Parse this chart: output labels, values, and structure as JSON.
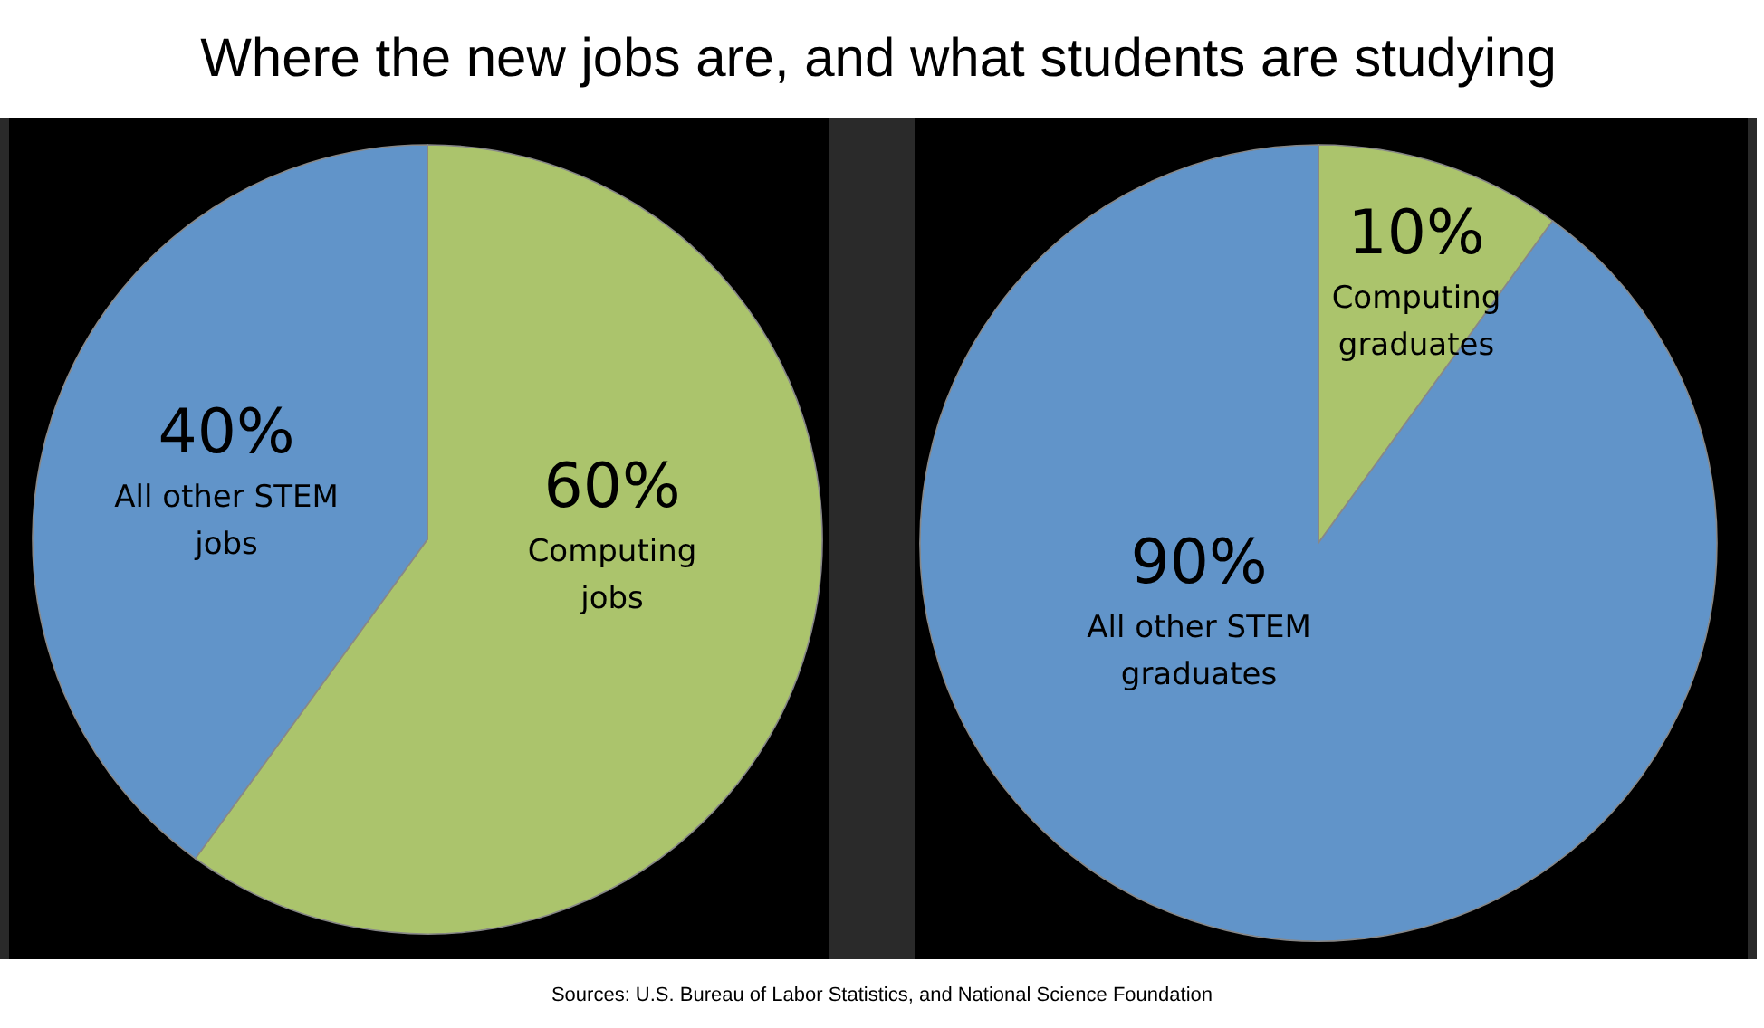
{
  "chart_data": [
    {
      "type": "pie",
      "title": "Where the new jobs are, and what students are studying",
      "categories": [
        "Computing\njobs",
        "All other STEM\njobs"
      ],
      "values": [
        60,
        40
      ],
      "value_labels": [
        "60%",
        "40%"
      ],
      "colors": [
        "#abc46c",
        "#6194c9"
      ]
    },
    {
      "type": "pie",
      "categories": [
        "Computing\ngraduates",
        "All other STEM\ngraduates"
      ],
      "values": [
        10,
        90
      ],
      "value_labels": [
        "10%",
        "90%"
      ],
      "colors": [
        "#abc46c",
        "#6194c9"
      ],
      "annotations": [
        "Sources: U.S. Bureau of Labor Statistics, and National Science Foundation"
      ]
    }
  ]
}
